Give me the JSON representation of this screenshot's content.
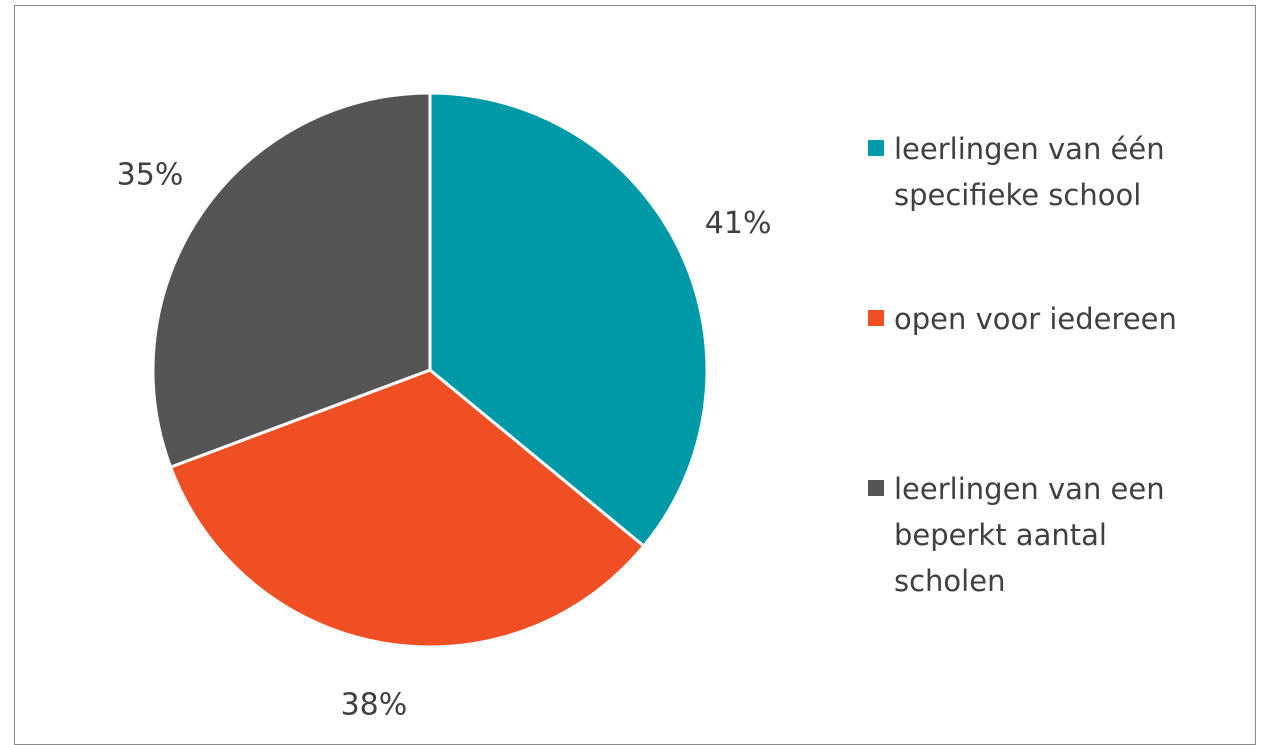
{
  "chart_data": {
    "type": "pie",
    "categories": [
      "leerlingen van één specifieke school",
      "open voor iedereen",
      "leerlingen van een beperkt aantal scholen"
    ],
    "values": [
      41,
      38,
      35
    ],
    "value_labels": [
      "41%",
      "38%",
      "35%"
    ],
    "colors": [
      "#0099a8",
      "#f04e23",
      "#555555"
    ]
  }
}
